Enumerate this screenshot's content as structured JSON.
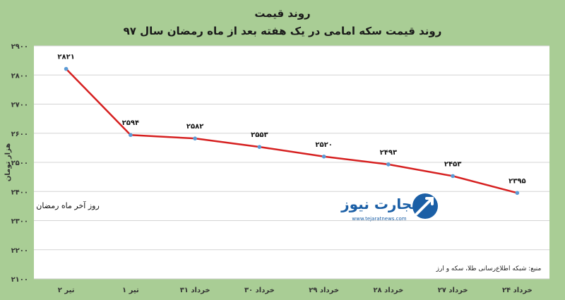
{
  "chart_data": {
    "type": "line",
    "title": "روند قیمت",
    "subtitle": "روند قیمت سکه امامی در یک هفته بعد از ماه رمضان سال ۹۷",
    "ylabel": "هزار تومان",
    "ylim": [
      2100,
      2900
    ],
    "yticks": [
      2100,
      2200,
      2300,
      2400,
      2500,
      2600,
      2700,
      2800,
      2900
    ],
    "ytick_labels": [
      "۲۱۰۰",
      "۲۲۰۰",
      "۲۳۰۰",
      "۲۴۰۰",
      "۲۵۰۰",
      "۲۶۰۰",
      "۲۷۰۰",
      "۲۸۰۰",
      "۲۹۰۰"
    ],
    "grid": true,
    "categories": [
      "۲۴ خرداد",
      "۲۷ خرداد",
      "۲۸ خرداد",
      "۲۹ خرداد",
      "۳۰ خرداد",
      "۳۱ خرداد",
      "۱ تیر",
      "۲ تیر"
    ],
    "values": [
      2395,
      2453,
      2493,
      2520,
      2553,
      2582,
      2594,
      2821
    ],
    "value_labels": [
      "۲۳۹۵",
      "۲۴۵۳",
      "۲۴۹۳",
      "۲۵۲۰",
      "۲۵۵۳",
      "۲۵۸۲",
      "۲۵۹۴",
      "۲۸۲۱"
    ],
    "annotation": "روز آخر ماه رمضان",
    "source": "منبع: شبکه اطلاع‌رسانی طلا، سکه و ارز",
    "colors": {
      "line": "#d62020",
      "marker": "#5b9bd5",
      "background": "#a9cd95",
      "plot": "#ffffff"
    }
  },
  "watermark": {
    "brand": "تجارت نیوز",
    "url": "www.tejaratnews.com",
    "icon": "tejaratnews-logo-icon",
    "color": "#1b5fa6"
  }
}
